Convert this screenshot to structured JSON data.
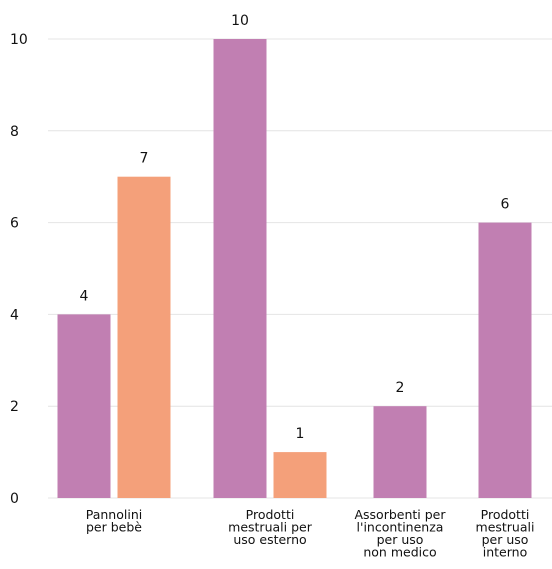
{
  "chart_data": {
    "type": "bar",
    "categories": [
      [
        "Pannolini",
        "per bebè"
      ],
      [
        "Prodotti",
        "mestruali per",
        "uso esterno"
      ],
      [
        "Assorbenti per",
        "l'incontinenza",
        "per uso",
        "non medico"
      ],
      [
        "Prodotti",
        "mestruali",
        "per uso",
        "interno"
      ]
    ],
    "series": [
      {
        "values": [
          4,
          10,
          2,
          6
        ],
        "color": "#c17fb2"
      },
      {
        "values": [
          7,
          1,
          null,
          null
        ],
        "color": "#f4a07a"
      }
    ],
    "ylim": [
      0,
      10
    ],
    "yticks": [
      "0",
      "2",
      "4",
      "6",
      "8",
      "10"
    ],
    "grid": true,
    "legend": "none"
  }
}
